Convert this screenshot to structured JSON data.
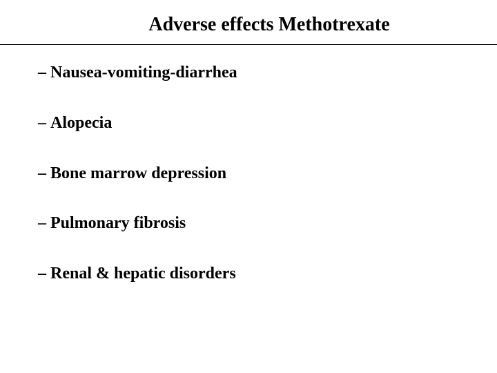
{
  "slide": {
    "title": "Adverse effects Methotrexate",
    "title_fontsize": 28,
    "title_color": "#000000",
    "background_color": "#ffffff",
    "divider_color": "#000000",
    "bullets": [
      "Nausea-vomiting-diarrhea",
      "Alopecia",
      "Bone marrow depression",
      "Pulmonary fibrosis",
      "Renal & hepatic disorders"
    ],
    "bullet_fontsize": 24,
    "bullet_color": "#000000",
    "bullet_marker": "–",
    "font_family": "Times New Roman"
  }
}
